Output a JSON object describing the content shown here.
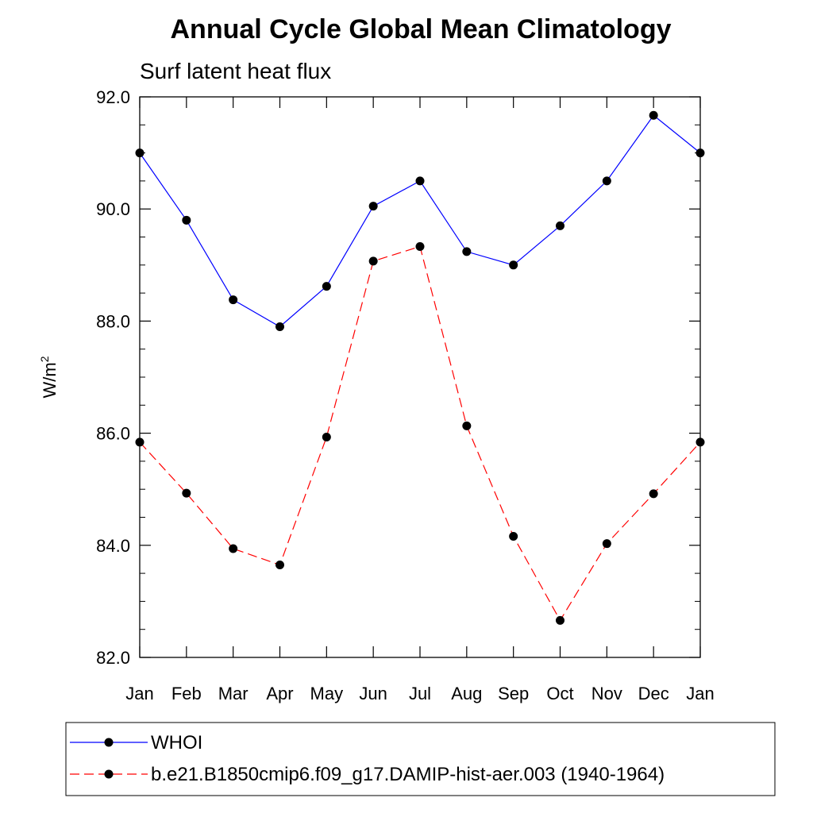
{
  "chart_data": {
    "type": "line",
    "title": "Annual Cycle Global Mean Climatology",
    "subtitle": "Surf latent heat flux",
    "ylabel": "W/m",
    "ylabel_superscript": "2",
    "xlabel": "",
    "categories": [
      "Jan",
      "Feb",
      "Mar",
      "Apr",
      "May",
      "Jun",
      "Jul",
      "Aug",
      "Sep",
      "Oct",
      "Nov",
      "Dec",
      "Jan"
    ],
    "ylim": [
      82.0,
      92.0
    ],
    "yticks": [
      "82.0",
      "84.0",
      "86.0",
      "88.0",
      "90.0",
      "92.0"
    ],
    "ytick_values": [
      82,
      84,
      86,
      88,
      90,
      92
    ],
    "grid": false,
    "legend_position": "bottom",
    "series": [
      {
        "name": "WHOI",
        "color": "#0000ff",
        "dash": "solid",
        "values": [
          91.0,
          89.8,
          88.38,
          87.9,
          88.62,
          90.05,
          90.5,
          89.24,
          89.0,
          89.7,
          90.5,
          91.67,
          91.0
        ]
      },
      {
        "name": "b.e21.B1850cmip6.f09_g17.DAMIP-hist-aer.003 (1940-1964)",
        "color": "#ff0000",
        "dash": "dashed",
        "values": [
          85.84,
          84.93,
          83.94,
          83.65,
          85.93,
          89.07,
          89.33,
          86.13,
          84.16,
          82.66,
          84.03,
          84.92,
          85.84
        ]
      }
    ]
  }
}
